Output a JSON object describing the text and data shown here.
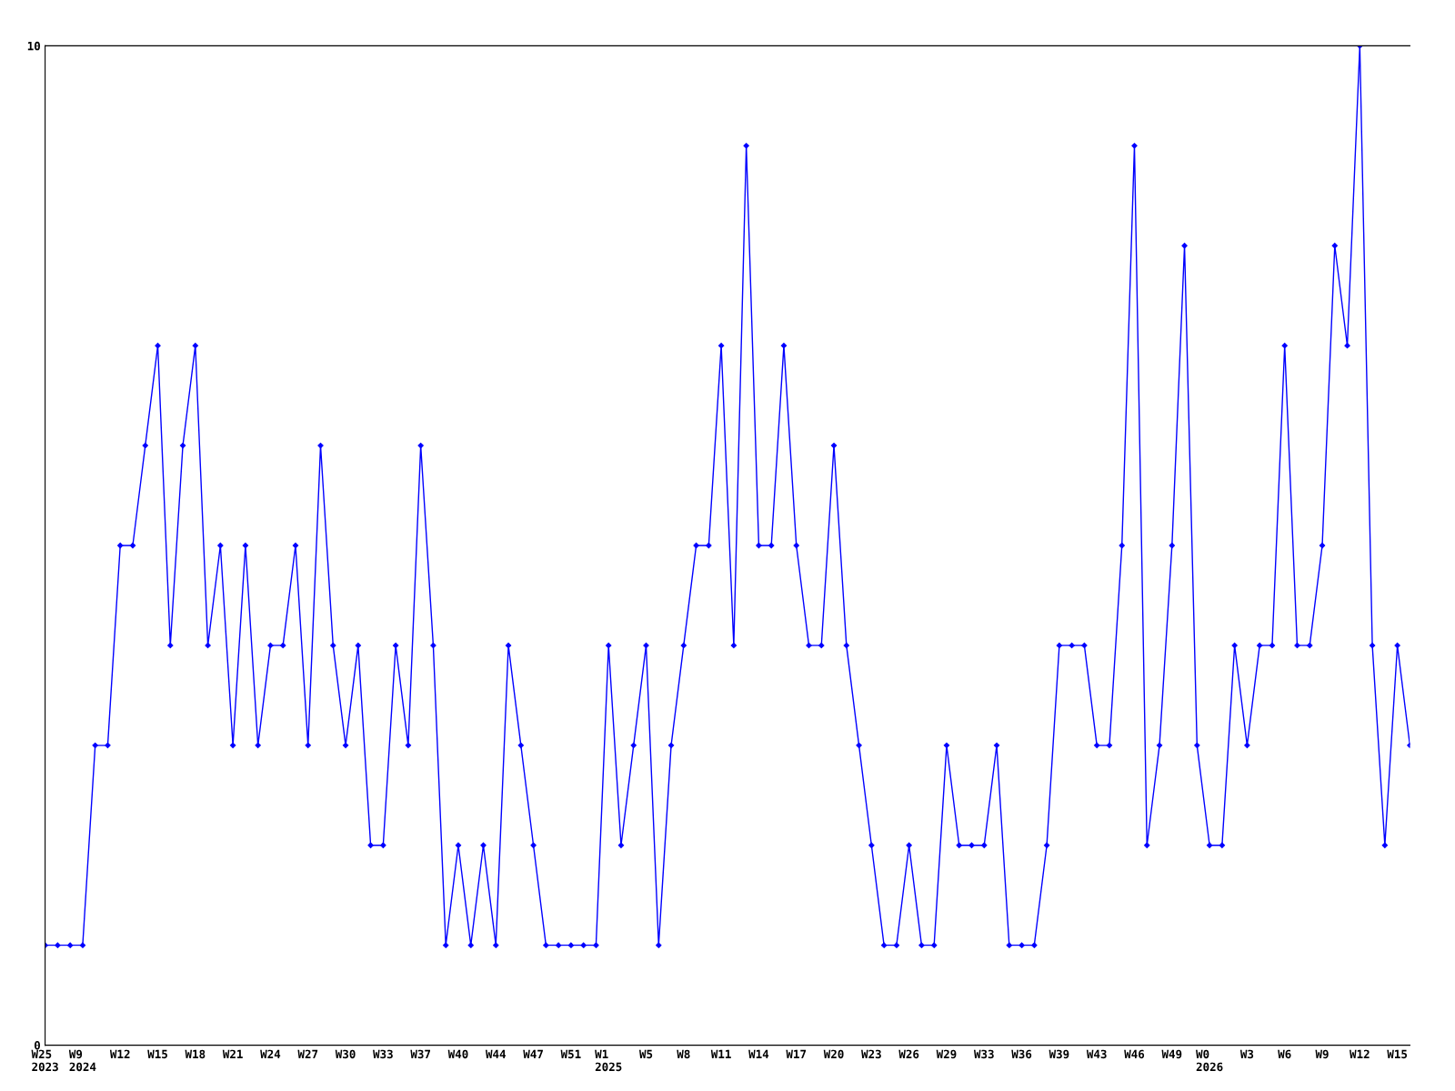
{
  "chart_data": {
    "type": "line",
    "categories": [
      "W25\n2023",
      null,
      null,
      "W9\n2024",
      null,
      null,
      "W12",
      null,
      null,
      "W15",
      null,
      null,
      "W18",
      null,
      null,
      "W21",
      null,
      null,
      "W24",
      null,
      null,
      "W27",
      null,
      null,
      "W30",
      null,
      null,
      "W33",
      null,
      null,
      "W37",
      null,
      null,
      "W40",
      null,
      null,
      "W44",
      null,
      null,
      "W47",
      null,
      null,
      "W51",
      null,
      null,
      "W1\n2025",
      null,
      null,
      "W5",
      null,
      null,
      "W8",
      null,
      null,
      "W11",
      null,
      null,
      "W14",
      null,
      null,
      "W17",
      null,
      null,
      "W20",
      null,
      null,
      "W23",
      null,
      null,
      "W26",
      null,
      null,
      "W29",
      null,
      null,
      "W33",
      null,
      null,
      "W36",
      null,
      null,
      "W39",
      null,
      null,
      "W43",
      null,
      null,
      "W46",
      null,
      null,
      "W49",
      null,
      null,
      "W0\n2026",
      null,
      null,
      "W3",
      null,
      null,
      "W6",
      null,
      null,
      "W9",
      null,
      null,
      "W12",
      null,
      null,
      "W15",
      null
    ],
    "series": [
      {
        "color": "#0000ff",
        "values": [
          1,
          1,
          1,
          1,
          3,
          3,
          5,
          5,
          6,
          7,
          4,
          6,
          7,
          4,
          5,
          3,
          5,
          3,
          4,
          4,
          5,
          3,
          6,
          4,
          3,
          4,
          2,
          2,
          4,
          3,
          6,
          4,
          1,
          2,
          1,
          2,
          1,
          4,
          3,
          2,
          1,
          1,
          1,
          1,
          1,
          4,
          2,
          3,
          4,
          1,
          3,
          4,
          5,
          5,
          7,
          4,
          9,
          5,
          5,
          7,
          5,
          4,
          4,
          6,
          4,
          3,
          2,
          1,
          1,
          2,
          1,
          1,
          3,
          2,
          2,
          2,
          3,
          1,
          1,
          1,
          2,
          4,
          4,
          4,
          3,
          3,
          5,
          9,
          2,
          3,
          5,
          8,
          3,
          2,
          2,
          4,
          3,
          4,
          4,
          7,
          4,
          4,
          5,
          8,
          7,
          10,
          4,
          2,
          4,
          3
        ]
      }
    ],
    "ylim": [
      0,
      10
    ],
    "yticks": [
      0,
      10
    ],
    "grid": false,
    "legend": false,
    "marker": "diamond",
    "line_style": "solid"
  }
}
